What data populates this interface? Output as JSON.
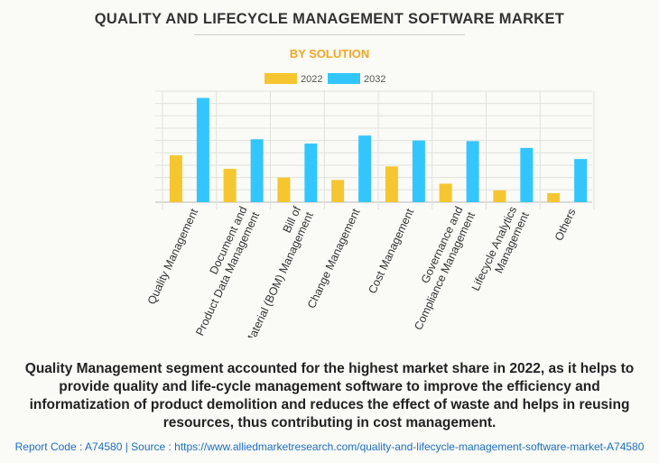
{
  "chart_data": {
    "type": "bar",
    "title": "QUALITY AND LIFECYCLE MANAGEMENT SOFTWARE MARKET",
    "subtitle": "BY SOLUTION",
    "xlabel": "",
    "ylabel": "",
    "ylim": [
      0,
      9
    ],
    "grid": true,
    "legend_position": "top-center",
    "categories": [
      [
        "Quality Management"
      ],
      [
        "Document and",
        "Product Data Management"
      ],
      [
        "Bill of",
        "Material (BOM) Management"
      ],
      [
        "Change Management"
      ],
      [
        "Cost Management"
      ],
      [
        "Governance and",
        "Compliance Management"
      ],
      [
        "Lifecycle Analytics",
        "Management"
      ],
      [
        "Others"
      ]
    ],
    "series": [
      {
        "name": "2022",
        "color": "#f5c630",
        "values": [
          3.8,
          2.7,
          2.0,
          1.8,
          2.9,
          1.5,
          0.95,
          0.73
        ]
      },
      {
        "name": "2032",
        "color": "#33c5fd",
        "values": [
          8.45,
          5.1,
          4.75,
          5.4,
          5.0,
          4.95,
          4.4,
          3.5
        ]
      }
    ]
  },
  "description": "Quality Management segment accounted for the highest market share in 2022, as it helps to provide quality and life-cycle management software to improve the efficiency and informatization of product demolition and reduces the effect of waste and helps in reusing resources, thus contributing in cost management.",
  "footer": "Report Code : A74580  |  Source : https://www.alliedmarketresearch.com/quality-and-lifecycle-management-software-market-A74580"
}
